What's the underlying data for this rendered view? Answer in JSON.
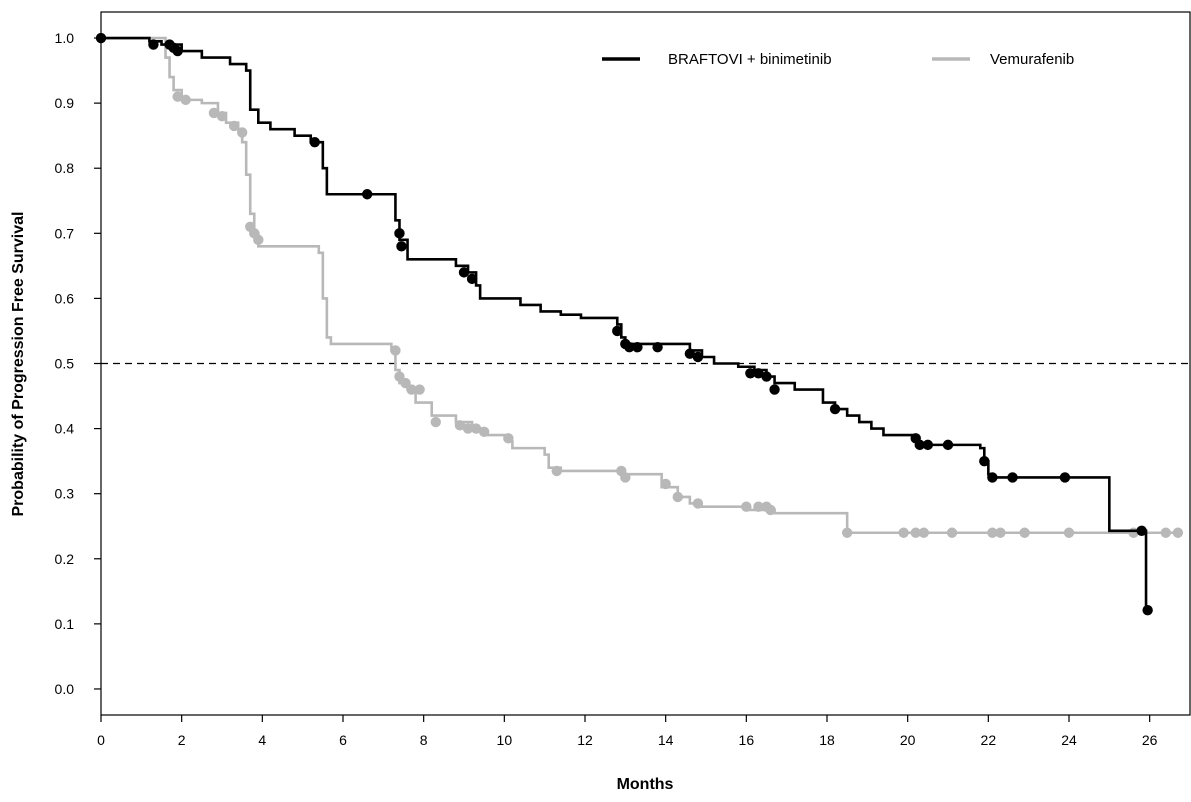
{
  "chart_data": {
    "type": "line",
    "title": "",
    "xlabel": "Months",
    "ylabel": "Probability of Progression Free Survival",
    "xlim": [
      0,
      27
    ],
    "ylim": [
      -0.04,
      1.04
    ],
    "xticks": [
      "0",
      "2",
      "4",
      "6",
      "8",
      "10",
      "12",
      "14",
      "16",
      "18",
      "20",
      "22",
      "24",
      "26"
    ],
    "yticks": [
      "0.0",
      "0.1",
      "0.2",
      "0.3",
      "0.4",
      "0.5",
      "0.6",
      "0.7",
      "0.8",
      "0.9",
      "1.0"
    ],
    "xtick_values": [
      0,
      2,
      4,
      6,
      8,
      10,
      12,
      14,
      16,
      18,
      20,
      22,
      24,
      26
    ],
    "ytick_values": [
      0.0,
      0.1,
      0.2,
      0.3,
      0.4,
      0.5,
      0.6,
      0.7,
      0.8,
      0.9,
      1.0
    ],
    "legend_position": "top-right",
    "reference_line": {
      "y": 0.5,
      "style": "dashed"
    },
    "series": [
      {
        "name": "BRAFTOVI + binimetinib",
        "color": "#000000",
        "step": [
          [
            0,
            1.0
          ],
          [
            0.8,
            1.0
          ],
          [
            1.2,
            0.995
          ],
          [
            1.5,
            0.99
          ],
          [
            2.0,
            0.98
          ],
          [
            2.5,
            0.97
          ],
          [
            3.2,
            0.96
          ],
          [
            3.6,
            0.95
          ],
          [
            3.7,
            0.89
          ],
          [
            3.9,
            0.87
          ],
          [
            4.2,
            0.86
          ],
          [
            4.8,
            0.85
          ],
          [
            5.2,
            0.84
          ],
          [
            5.5,
            0.8
          ],
          [
            5.6,
            0.76
          ],
          [
            7.3,
            0.72
          ],
          [
            7.4,
            0.69
          ],
          [
            7.6,
            0.66
          ],
          [
            8.8,
            0.65
          ],
          [
            9.1,
            0.64
          ],
          [
            9.3,
            0.62
          ],
          [
            9.4,
            0.6
          ],
          [
            10.4,
            0.59
          ],
          [
            10.9,
            0.58
          ],
          [
            11.4,
            0.575
          ],
          [
            11.9,
            0.57
          ],
          [
            12.8,
            0.56
          ],
          [
            12.9,
            0.54
          ],
          [
            13.0,
            0.53
          ],
          [
            14.6,
            0.52
          ],
          [
            14.9,
            0.51
          ],
          [
            15.2,
            0.5
          ],
          [
            15.8,
            0.495
          ],
          [
            16.2,
            0.49
          ],
          [
            16.5,
            0.48
          ],
          [
            16.7,
            0.47
          ],
          [
            17.2,
            0.46
          ],
          [
            17.9,
            0.44
          ],
          [
            18.2,
            0.43
          ],
          [
            18.5,
            0.42
          ],
          [
            18.8,
            0.41
          ],
          [
            19.1,
            0.4
          ],
          [
            19.4,
            0.39
          ],
          [
            20.2,
            0.38
          ],
          [
            20.3,
            0.375
          ],
          [
            21.8,
            0.37
          ],
          [
            21.9,
            0.35
          ],
          [
            22.0,
            0.33
          ],
          [
            22.1,
            0.325
          ],
          [
            24.9,
            0.325
          ],
          [
            25.0,
            0.243
          ],
          [
            25.9,
            0.243
          ],
          [
            25.91,
            0.121
          ],
          [
            26.0,
            0.121
          ]
        ],
        "censored": [
          [
            0,
            1.0
          ],
          [
            1.3,
            0.99
          ],
          [
            1.7,
            0.99
          ],
          [
            1.8,
            0.985
          ],
          [
            1.9,
            0.98
          ],
          [
            5.3,
            0.84
          ],
          [
            6.6,
            0.76
          ],
          [
            7.4,
            0.7
          ],
          [
            7.45,
            0.68
          ],
          [
            9.0,
            0.64
          ],
          [
            9.2,
            0.63
          ],
          [
            12.8,
            0.55
          ],
          [
            13.0,
            0.53
          ],
          [
            13.1,
            0.525
          ],
          [
            13.3,
            0.525
          ],
          [
            13.8,
            0.525
          ],
          [
            14.6,
            0.515
          ],
          [
            14.8,
            0.51
          ],
          [
            16.1,
            0.485
          ],
          [
            16.3,
            0.485
          ],
          [
            16.5,
            0.48
          ],
          [
            16.7,
            0.46
          ],
          [
            18.2,
            0.43
          ],
          [
            20.2,
            0.385
          ],
          [
            20.3,
            0.375
          ],
          [
            20.5,
            0.375
          ],
          [
            21.0,
            0.375
          ],
          [
            21.9,
            0.35
          ],
          [
            22.1,
            0.325
          ],
          [
            22.6,
            0.325
          ],
          [
            23.9,
            0.325
          ],
          [
            25.8,
            0.243
          ],
          [
            25.95,
            0.121
          ]
        ]
      },
      {
        "name": "Vemurafenib",
        "color": "#b8b8b8",
        "step": [
          [
            0,
            1.0
          ],
          [
            1.5,
            1.0
          ],
          [
            1.6,
            0.97
          ],
          [
            1.7,
            0.94
          ],
          [
            1.8,
            0.92
          ],
          [
            2.0,
            0.905
          ],
          [
            2.5,
            0.9
          ],
          [
            2.9,
            0.885
          ],
          [
            3.1,
            0.87
          ],
          [
            3.4,
            0.86
          ],
          [
            3.5,
            0.84
          ],
          [
            3.6,
            0.79
          ],
          [
            3.7,
            0.73
          ],
          [
            3.8,
            0.7
          ],
          [
            3.9,
            0.68
          ],
          [
            5.4,
            0.67
          ],
          [
            5.5,
            0.6
          ],
          [
            5.6,
            0.54
          ],
          [
            5.7,
            0.53
          ],
          [
            7.2,
            0.52
          ],
          [
            7.3,
            0.49
          ],
          [
            7.4,
            0.47
          ],
          [
            7.6,
            0.46
          ],
          [
            7.8,
            0.44
          ],
          [
            8.2,
            0.42
          ],
          [
            8.8,
            0.41
          ],
          [
            9.2,
            0.4
          ],
          [
            9.5,
            0.39
          ],
          [
            10.1,
            0.38
          ],
          [
            10.2,
            0.37
          ],
          [
            11.0,
            0.36
          ],
          [
            11.1,
            0.34
          ],
          [
            11.4,
            0.335
          ],
          [
            12.9,
            0.33
          ],
          [
            13.8,
            0.33
          ],
          [
            13.9,
            0.31
          ],
          [
            14.3,
            0.295
          ],
          [
            14.6,
            0.285
          ],
          [
            14.8,
            0.28
          ],
          [
            16.0,
            0.275
          ],
          [
            16.7,
            0.27
          ],
          [
            18.4,
            0.27
          ],
          [
            18.5,
            0.24
          ],
          [
            26.8,
            0.24
          ]
        ],
        "censored": [
          [
            1.9,
            0.91
          ],
          [
            2.1,
            0.905
          ],
          [
            2.8,
            0.885
          ],
          [
            3.0,
            0.88
          ],
          [
            3.3,
            0.865
          ],
          [
            3.5,
            0.855
          ],
          [
            3.7,
            0.71
          ],
          [
            3.8,
            0.7
          ],
          [
            3.9,
            0.69
          ],
          [
            7.3,
            0.52
          ],
          [
            7.4,
            0.48
          ],
          [
            7.55,
            0.47
          ],
          [
            7.7,
            0.46
          ],
          [
            7.9,
            0.46
          ],
          [
            8.3,
            0.41
          ],
          [
            8.9,
            0.405
          ],
          [
            9.1,
            0.4
          ],
          [
            9.3,
            0.4
          ],
          [
            9.5,
            0.395
          ],
          [
            10.1,
            0.385
          ],
          [
            11.3,
            0.335
          ],
          [
            12.9,
            0.335
          ],
          [
            13.0,
            0.325
          ],
          [
            14.0,
            0.315
          ],
          [
            14.3,
            0.295
          ],
          [
            14.8,
            0.285
          ],
          [
            16.0,
            0.28
          ],
          [
            16.3,
            0.28
          ],
          [
            16.5,
            0.28
          ],
          [
            16.6,
            0.275
          ],
          [
            18.5,
            0.24
          ],
          [
            19.9,
            0.24
          ],
          [
            20.2,
            0.24
          ],
          [
            20.4,
            0.24
          ],
          [
            21.1,
            0.24
          ],
          [
            22.1,
            0.24
          ],
          [
            22.3,
            0.24
          ],
          [
            22.9,
            0.24
          ],
          [
            24.0,
            0.24
          ],
          [
            25.6,
            0.24
          ],
          [
            26.4,
            0.24
          ],
          [
            26.7,
            0.24
          ]
        ]
      }
    ]
  }
}
